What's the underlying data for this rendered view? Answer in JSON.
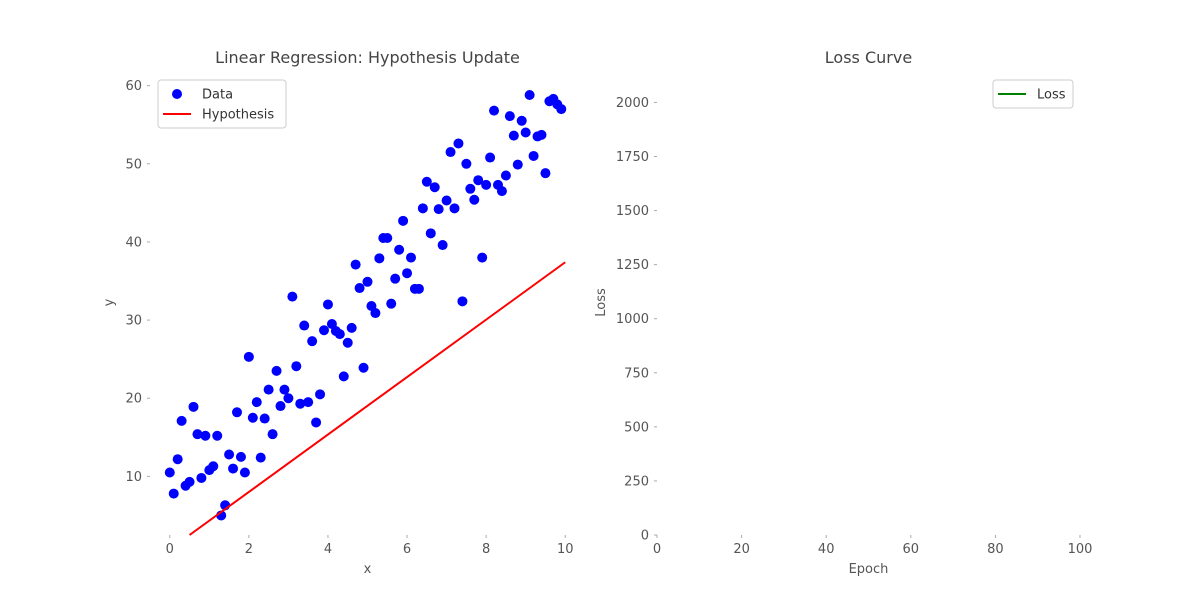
{
  "chart_data": [
    {
      "type": "scatter",
      "title": "Linear Regression: Hypothesis Update",
      "xlabel": "x",
      "ylabel": "y",
      "xlim": [
        -0.5,
        10.5
      ],
      "ylim": [
        2.5,
        62
      ],
      "xticks": [
        0,
        2,
        4,
        6,
        8,
        10
      ],
      "yticks": [
        10,
        20,
        30,
        40,
        50,
        60
      ],
      "legend_position": "top-left",
      "grid": false,
      "series": [
        {
          "name": "Data",
          "kind": "scatter",
          "color": "#0000ff",
          "points": [
            [
              0.0,
              10.5
            ],
            [
              0.1,
              7.8
            ],
            [
              0.2,
              12.2
            ],
            [
              0.3,
              17.1
            ],
            [
              0.4,
              8.8
            ],
            [
              0.5,
              9.3
            ],
            [
              0.6,
              18.9
            ],
            [
              0.7,
              15.4
            ],
            [
              0.8,
              9.8
            ],
            [
              0.9,
              15.2
            ],
            [
              1.0,
              10.8
            ],
            [
              1.1,
              11.3
            ],
            [
              1.2,
              15.2
            ],
            [
              1.3,
              5.0
            ],
            [
              1.4,
              6.3
            ],
            [
              1.5,
              12.8
            ],
            [
              1.6,
              11.0
            ],
            [
              1.7,
              18.2
            ],
            [
              1.8,
              12.5
            ],
            [
              1.9,
              10.5
            ],
            [
              2.0,
              25.3
            ],
            [
              2.1,
              17.5
            ],
            [
              2.2,
              19.5
            ],
            [
              2.3,
              12.4
            ],
            [
              2.4,
              17.4
            ],
            [
              2.5,
              21.1
            ],
            [
              2.6,
              15.4
            ],
            [
              2.7,
              23.5
            ],
            [
              2.8,
              19.0
            ],
            [
              2.9,
              21.1
            ],
            [
              3.0,
              20.0
            ],
            [
              3.1,
              33.0
            ],
            [
              3.2,
              24.1
            ],
            [
              3.3,
              19.3
            ],
            [
              3.4,
              29.3
            ],
            [
              3.5,
              19.5
            ],
            [
              3.6,
              27.3
            ],
            [
              3.7,
              16.9
            ],
            [
              3.8,
              20.5
            ],
            [
              3.9,
              28.7
            ],
            [
              4.0,
              32.0
            ],
            [
              4.1,
              29.5
            ],
            [
              4.2,
              28.6
            ],
            [
              4.3,
              28.2
            ],
            [
              4.4,
              22.8
            ],
            [
              4.5,
              27.1
            ],
            [
              4.6,
              29.0
            ],
            [
              4.7,
              37.1
            ],
            [
              4.8,
              34.1
            ],
            [
              4.9,
              23.9
            ],
            [
              5.0,
              34.9
            ],
            [
              5.1,
              31.8
            ],
            [
              5.2,
              30.9
            ],
            [
              5.3,
              37.9
            ],
            [
              5.4,
              40.5
            ],
            [
              5.5,
              40.5
            ],
            [
              5.6,
              32.1
            ],
            [
              5.7,
              35.3
            ],
            [
              5.8,
              39.0
            ],
            [
              5.9,
              42.7
            ],
            [
              6.0,
              36.0
            ],
            [
              6.1,
              38.0
            ],
            [
              6.2,
              34.0
            ],
            [
              6.3,
              34.0
            ],
            [
              6.4,
              44.3
            ],
            [
              6.5,
              47.7
            ],
            [
              6.6,
              41.1
            ],
            [
              6.7,
              47.0
            ],
            [
              6.8,
              44.2
            ],
            [
              6.9,
              39.6
            ],
            [
              7.0,
              45.3
            ],
            [
              7.1,
              51.5
            ],
            [
              7.2,
              44.3
            ],
            [
              7.3,
              52.6
            ],
            [
              7.4,
              32.4
            ],
            [
              7.5,
              50.0
            ],
            [
              7.6,
              46.8
            ],
            [
              7.7,
              45.4
            ],
            [
              7.8,
              47.9
            ],
            [
              7.9,
              38.0
            ],
            [
              8.0,
              47.3
            ],
            [
              8.1,
              50.8
            ],
            [
              8.2,
              56.8
            ],
            [
              8.3,
              47.3
            ],
            [
              8.4,
              46.5
            ],
            [
              8.5,
              48.5
            ],
            [
              8.6,
              56.1
            ],
            [
              8.7,
              53.6
            ],
            [
              8.8,
              49.9
            ],
            [
              8.9,
              55.5
            ],
            [
              9.0,
              54.0
            ],
            [
              9.1,
              58.8
            ],
            [
              9.2,
              51.0
            ],
            [
              9.3,
              53.5
            ],
            [
              9.4,
              53.7
            ],
            [
              9.5,
              48.8
            ],
            [
              9.6,
              58.0
            ],
            [
              9.7,
              58.3
            ],
            [
              9.8,
              57.6
            ],
            [
              9.9,
              57.0
            ]
          ]
        },
        {
          "name": "Hypothesis",
          "kind": "line",
          "color": "#ff0000",
          "points": [
            [
              0.5,
              2.5
            ],
            [
              10.0,
              37.4
            ]
          ]
        }
      ]
    },
    {
      "type": "line",
      "title": "Loss Curve",
      "xlabel": "Epoch",
      "ylabel": "Loss",
      "xlim": [
        0,
        100
      ],
      "ylim": [
        0,
        2150
      ],
      "xticks": [
        0,
        20,
        40,
        60,
        80,
        100
      ],
      "yticks": [
        0,
        250,
        500,
        750,
        1000,
        1250,
        1500,
        1750,
        2000
      ],
      "legend_position": "top-right",
      "grid": false,
      "series": [
        {
          "name": "Loss",
          "color": "#008000",
          "x": [],
          "values": []
        }
      ]
    }
  ]
}
